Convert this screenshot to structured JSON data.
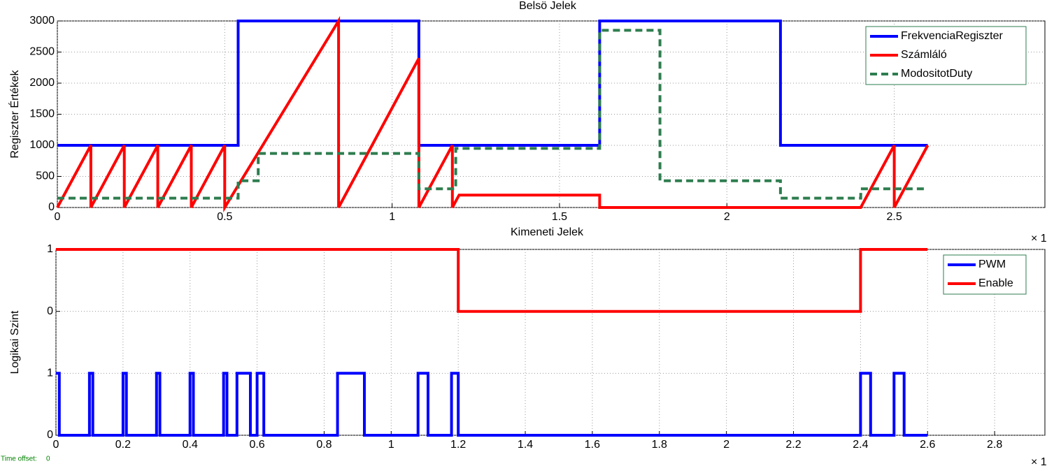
{
  "chart_data": [
    {
      "type": "line",
      "title": "Belsö Jelek",
      "ylabel": "Regiszter Értékek",
      "x_exponent": "× 1",
      "xlim": [
        0,
        2.95
      ],
      "ylim": [
        0,
        3000
      ],
      "xticks": [
        0,
        0.5,
        1,
        1.5,
        2,
        2.5
      ],
      "yticks": [
        0,
        500,
        1000,
        1500,
        2000,
        2500,
        3000
      ],
      "grid": true,
      "legend": "upper right",
      "series": [
        {
          "name": "FrekvenciaRegiszter",
          "color": "#0000ff",
          "style": "solid",
          "x": [
            0,
            0.54,
            0.54,
            1.08,
            1.08,
            1.62,
            1.62,
            2.16,
            2.16,
            2.6
          ],
          "values": [
            1000,
            1000,
            3000,
            3000,
            1000,
            1000,
            3000,
            3000,
            1000,
            1000
          ]
        },
        {
          "name": "Számláló",
          "color": "#ff0000",
          "style": "solid",
          "x": [
            0,
            0.1,
            0.1,
            0.2,
            0.2,
            0.3,
            0.3,
            0.4,
            0.4,
            0.5,
            0.5,
            0.84,
            0.84,
            1.08,
            1.08,
            1.18,
            1.18,
            1.2,
            1.62,
            1.62,
            2.4,
            2.5,
            2.5,
            2.6
          ],
          "values": [
            0,
            1000,
            0,
            1000,
            0,
            1000,
            0,
            1000,
            0,
            1000,
            0,
            3000,
            0,
            2400,
            0,
            1000,
            0,
            200,
            200,
            0,
            0,
            1000,
            0,
            1000
          ]
        },
        {
          "name": "ModositotDuty",
          "color": "#2e7d4f",
          "style": "dashed",
          "x": [
            0,
            0.54,
            0.54,
            0.6,
            0.6,
            1.08,
            1.08,
            1.19,
            1.19,
            1.62,
            1.62,
            1.8,
            1.8,
            2.16,
            2.16,
            2.4,
            2.4,
            2.6
          ],
          "values": [
            150,
            150,
            430,
            430,
            870,
            870,
            300,
            300,
            950,
            950,
            2850,
            2850,
            430,
            430,
            150,
            150,
            300,
            300
          ]
        }
      ]
    },
    {
      "type": "line",
      "title": "Kimeneti Jelek",
      "ylabel": "Logikai Szint",
      "x_exponent": "× 1",
      "xlim": [
        0,
        2.95
      ],
      "ylim": [
        0,
        3
      ],
      "xticks": [
        0,
        0.2,
        0.4,
        0.6,
        0.8,
        1,
        1.2,
        1.4,
        1.6,
        1.8,
        2,
        2.2,
        2.4,
        2.6,
        2.8
      ],
      "yticks": [
        0,
        1,
        {
          "value": 2,
          "label": "0"
        },
        {
          "value": 3,
          "label": "1"
        }
      ],
      "grid": true,
      "legend": "upper right",
      "series": [
        {
          "name": "PWM",
          "color": "#0000ff",
          "style": "solid",
          "x": [
            0,
            0.01,
            0.01,
            0.1,
            0.1,
            0.11,
            0.11,
            0.2,
            0.2,
            0.21,
            0.21,
            0.3,
            0.3,
            0.31,
            0.31,
            0.4,
            0.4,
            0.41,
            0.41,
            0.5,
            0.5,
            0.51,
            0.51,
            0.54,
            0.54,
            0.58,
            0.58,
            0.6,
            0.6,
            0.62,
            0.62,
            0.84,
            0.84,
            0.92,
            0.92,
            1.08,
            1.08,
            1.11,
            1.11,
            1.18,
            1.18,
            1.2,
            1.2,
            2.4,
            2.4,
            2.43,
            2.43,
            2.5,
            2.5,
            2.53,
            2.53,
            2.6
          ],
          "values": [
            1,
            1,
            0,
            0,
            1,
            1,
            0,
            0,
            1,
            1,
            0,
            0,
            1,
            1,
            0,
            0,
            1,
            1,
            0,
            0,
            1,
            1,
            0,
            0,
            1,
            1,
            0,
            0,
            1,
            1,
            0,
            0,
            1,
            1,
            0,
            0,
            1,
            1,
            0,
            0,
            1,
            1,
            0,
            0,
            1,
            1,
            0,
            0,
            1,
            1,
            0,
            0
          ]
        },
        {
          "name": "Enable",
          "color": "#ff0000",
          "style": "solid",
          "x": [
            0,
            1.2,
            1.2,
            2.4,
            2.4,
            2.6
          ],
          "values": [
            3,
            3,
            2,
            2,
            3,
            3
          ]
        }
      ]
    }
  ],
  "footer": {
    "label": "Time offset:",
    "value": "0"
  }
}
